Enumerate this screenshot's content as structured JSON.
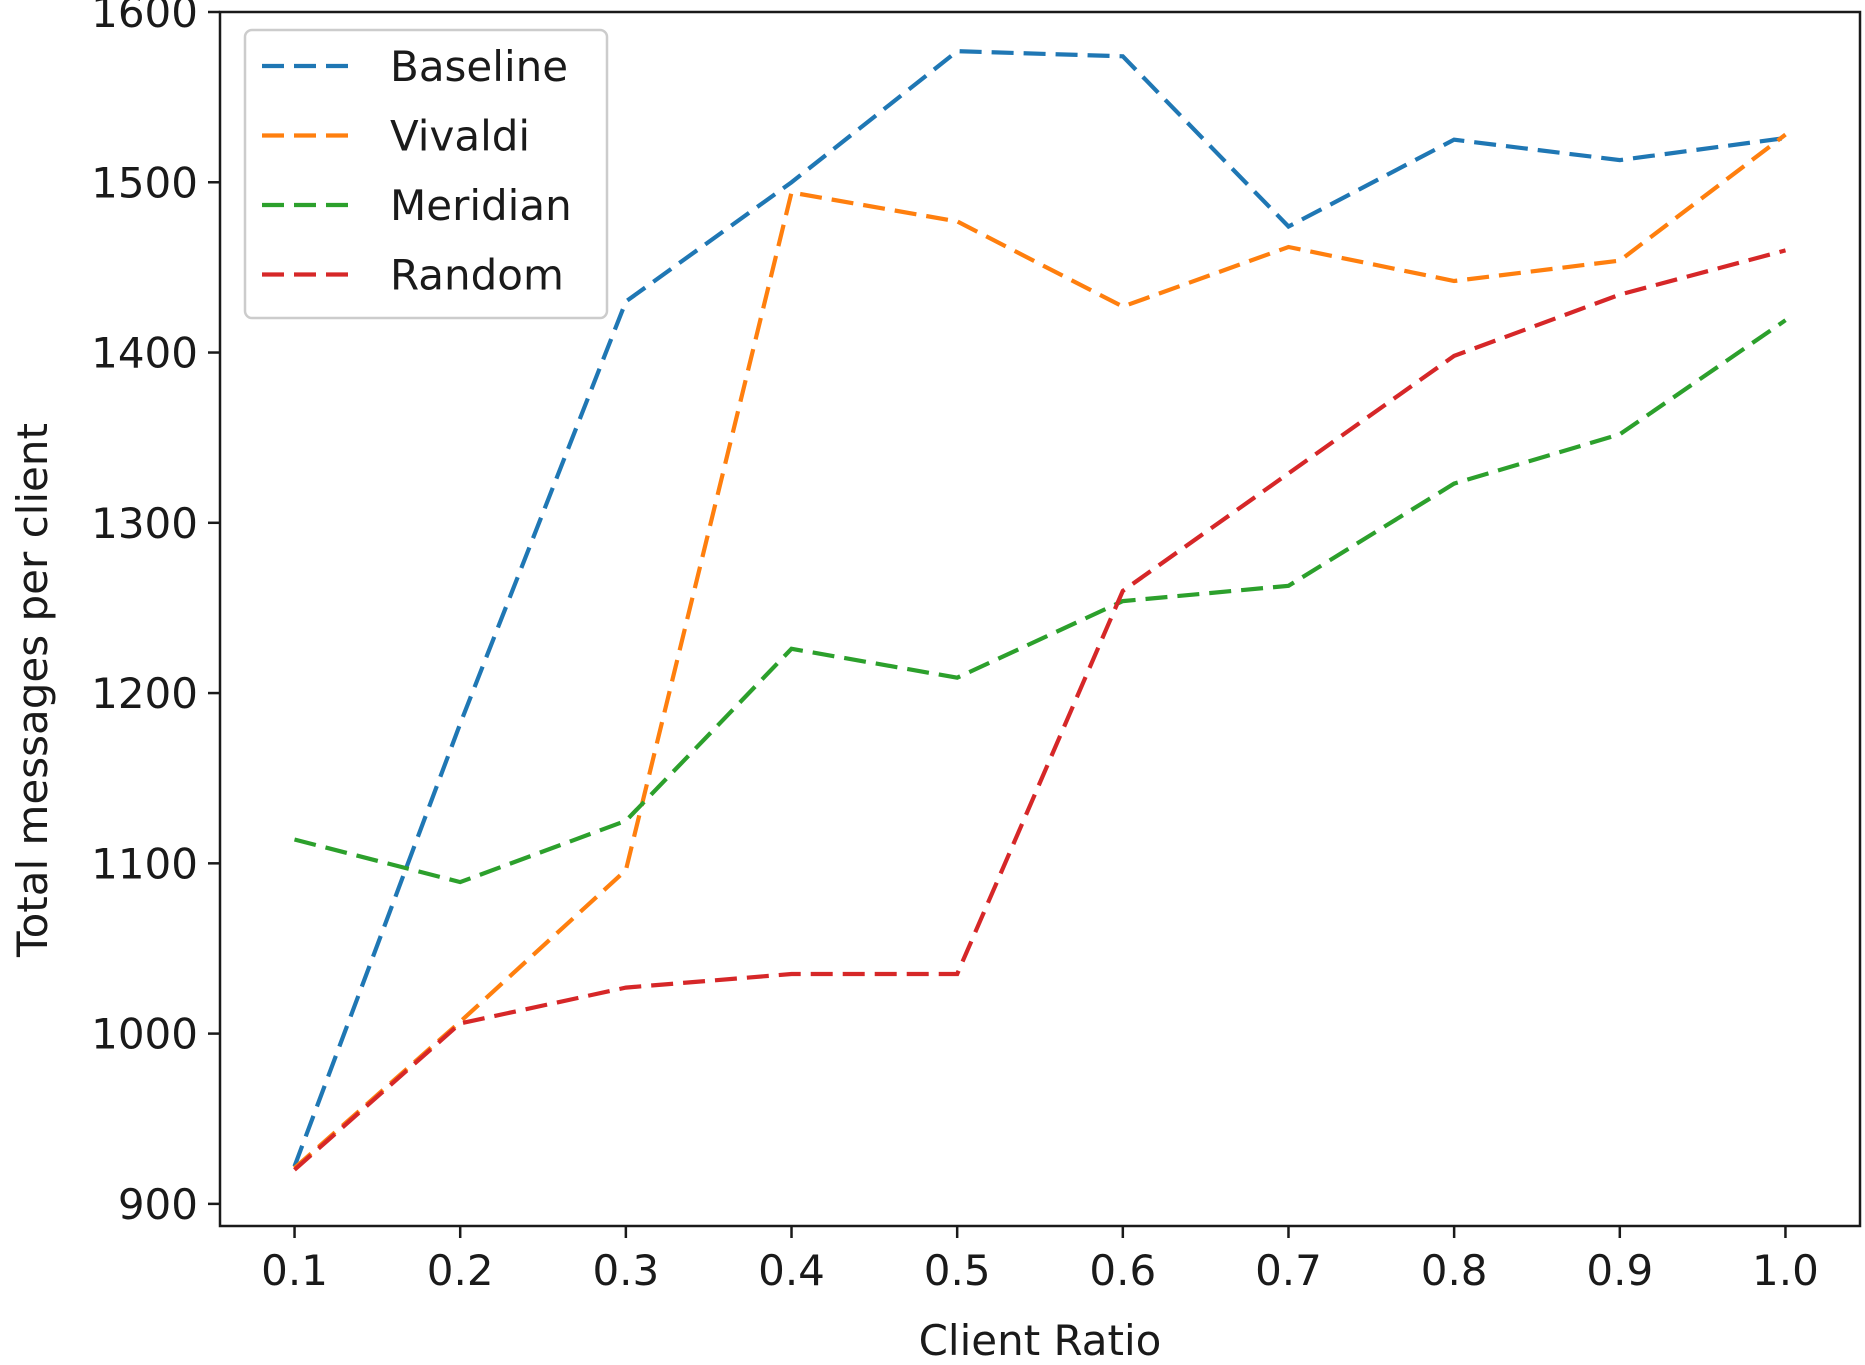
{
  "chart_data": {
    "type": "line",
    "title": "",
    "xlabel": "Client Ratio",
    "ylabel": "Total messages per client",
    "xlim": [
      0.055,
      1.045
    ],
    "ylim": [
      887,
      1600
    ],
    "x": [
      0.1,
      0.2,
      0.3,
      0.4,
      0.5,
      0.6,
      0.7,
      0.8,
      0.9,
      1.0
    ],
    "x_tick_labels": [
      "0.1",
      "0.2",
      "0.3",
      "0.4",
      "0.5",
      "0.6",
      "0.7",
      "0.8",
      "0.9",
      "1.0"
    ],
    "y_ticks": [
      900,
      1000,
      1100,
      1200,
      1300,
      1400,
      1500,
      1600
    ],
    "y_tick_labels": [
      "900",
      "1000",
      "1100",
      "1200",
      "1300",
      "1400",
      "1500",
      "1600"
    ],
    "grid": false,
    "legend_position": "top-left",
    "line_style": "dashed",
    "series": [
      {
        "name": "Baseline",
        "color": "#1f77b4",
        "values": [
          922,
          1182,
          1430,
          1500,
          1577,
          1574,
          1474,
          1525,
          1513,
          1526
        ]
      },
      {
        "name": "Vivaldi",
        "color": "#ff7f0e",
        "values": [
          921,
          1007,
          1096,
          1494,
          1477,
          1427,
          1462,
          1442,
          1454,
          1528
        ]
      },
      {
        "name": "Meridian",
        "color": "#2ca02c",
        "values": [
          1114,
          1089,
          1125,
          1226,
          1209,
          1254,
          1263,
          1323,
          1352,
          1419
        ]
      },
      {
        "name": "Random",
        "color": "#d62728",
        "values": [
          920,
          1006,
          1027,
          1035,
          1035,
          1260,
          1329,
          1398,
          1434,
          1460
        ]
      }
    ]
  }
}
